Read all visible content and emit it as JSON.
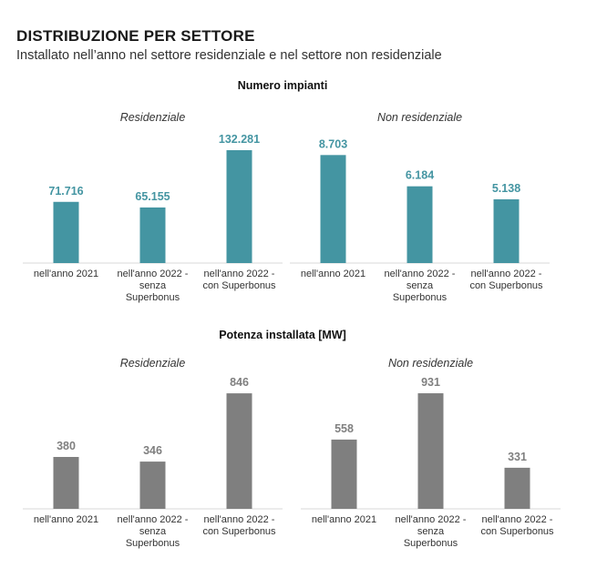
{
  "header": {
    "title": "DISTRIBUZIONE PER SETTORE",
    "subtitle": "Installato nell’anno nel settore residenziale e nel settore non residenziale"
  },
  "sections": [
    {
      "title": "Numero impianti"
    },
    {
      "title": "Potenza installata [MW]"
    }
  ],
  "colors": {
    "teal": "#4495a2",
    "gray": "#7f7f7f"
  },
  "chart_data": [
    {
      "type": "bar",
      "section": "Numero impianti",
      "title": "Residenziale",
      "categories": [
        [
          "nell'anno 2021"
        ],
        [
          "nell'anno 2022 -",
          "senza",
          "Superbonus"
        ],
        [
          "nell'anno 2022 -",
          "con Superbonus"
        ]
      ],
      "values": [
        71716,
        65155,
        132281
      ],
      "labels": [
        "71.716",
        "65.155",
        "132.281"
      ],
      "color": "#4495a2",
      "ylim": [
        0,
        160000
      ]
    },
    {
      "type": "bar",
      "section": "Numero impianti",
      "title": "Non residenziale",
      "categories": [
        [
          "nell'anno 2021"
        ],
        [
          "nell'anno 2022 -",
          "senza",
          "Superbonus"
        ],
        [
          "nell'anno 2022 -",
          "con Superbonus"
        ]
      ],
      "values": [
        8703,
        6184,
        5138
      ],
      "labels": [
        "8.703",
        "6.184",
        "5.138"
      ],
      "color": "#4495a2",
      "ylim": [
        0,
        11000
      ]
    },
    {
      "type": "bar",
      "section": "Potenza installata [MW]",
      "title": "Residenziale",
      "categories": [
        [
          "nell'anno 2021"
        ],
        [
          "nell'anno 2022 -",
          "senza",
          "Superbonus"
        ],
        [
          "nell'anno 2022 -",
          "con Superbonus"
        ]
      ],
      "values": [
        380,
        346,
        846
      ],
      "labels": [
        "380",
        "346",
        "846"
      ],
      "color": "#7f7f7f",
      "ylim": [
        0,
        1000
      ]
    },
    {
      "type": "bar",
      "section": "Potenza installata [MW]",
      "title": "Non residenziale",
      "categories": [
        [
          "nell'anno 2021"
        ],
        [
          "nell'anno 2022 -",
          "senza",
          "Superbonus"
        ],
        [
          "nell'anno 2022 -",
          "con Superbonus"
        ]
      ],
      "values": [
        558,
        931,
        331
      ],
      "labels": [
        "558",
        "931",
        "331"
      ],
      "color": "#7f7f7f",
      "ylim": [
        0,
        1100
      ]
    }
  ]
}
